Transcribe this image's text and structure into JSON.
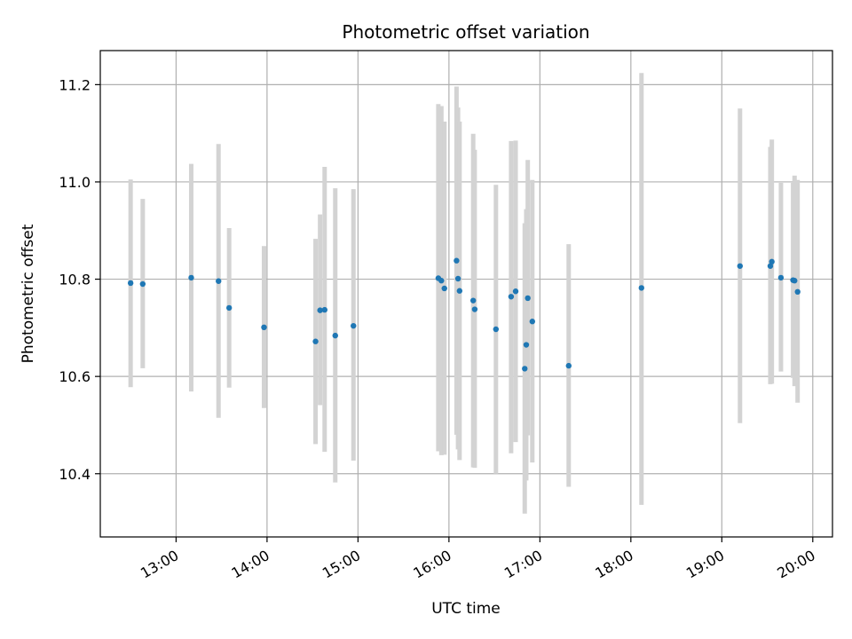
{
  "chart_data": {
    "type": "scatter",
    "title": "Photometric offset variation",
    "xlabel": "UTC time",
    "ylabel": "Photometric offset",
    "xlim": [
      "12:10",
      "20:13"
    ],
    "ylim": [
      10.27,
      11.27
    ],
    "grid": true,
    "legend": "none",
    "colors": {
      "points": "#1f77b4",
      "errorbars": "#d3d3d3",
      "grid": "#b0b0b0"
    },
    "x_ticks": [
      "13:00",
      "14:00",
      "15:00",
      "16:00",
      "17:00",
      "18:00",
      "19:00",
      "20:00"
    ],
    "y_ticks": [
      "10.4",
      "10.6",
      "10.8",
      "11.0",
      "11.2"
    ],
    "points": [
      {
        "x": "12:30",
        "y": 10.792,
        "err_low": 10.578,
        "err_high": 11.005
      },
      {
        "x": "12:38",
        "y": 10.79,
        "err_low": 10.617,
        "err_high": 10.965
      },
      {
        "x": "13:10",
        "y": 10.803,
        "err_low": 10.569,
        "err_high": 11.037
      },
      {
        "x": "13:28",
        "y": 10.796,
        "err_low": 10.515,
        "err_high": 11.078
      },
      {
        "x": "13:35",
        "y": 10.741,
        "err_low": 10.577,
        "err_high": 10.905
      },
      {
        "x": "13:58",
        "y": 10.701,
        "err_low": 10.535,
        "err_high": 10.868
      },
      {
        "x": "14:32",
        "y": 10.672,
        "err_low": 10.461,
        "err_high": 10.883
      },
      {
        "x": "14:35",
        "y": 10.736,
        "err_low": 10.541,
        "err_high": 10.933
      },
      {
        "x": "14:38",
        "y": 10.737,
        "err_low": 10.445,
        "err_high": 11.031
      },
      {
        "x": "14:45",
        "y": 10.684,
        "err_low": 10.382,
        "err_high": 10.987
      },
      {
        "x": "14:57",
        "y": 10.704,
        "err_low": 10.427,
        "err_high": 10.985
      },
      {
        "x": "15:53",
        "y": 10.802,
        "err_low": 10.446,
        "err_high": 11.16
      },
      {
        "x": "15:55",
        "y": 10.797,
        "err_low": 10.438,
        "err_high": 11.156
      },
      {
        "x": "15:57",
        "y": 10.781,
        "err_low": 10.439,
        "err_high": 11.124
      },
      {
        "x": "16:05",
        "y": 10.838,
        "err_low": 10.48,
        "err_high": 11.196
      },
      {
        "x": "16:06",
        "y": 10.801,
        "err_low": 10.45,
        "err_high": 11.153
      },
      {
        "x": "16:07",
        "y": 10.776,
        "err_low": 10.428,
        "err_high": 11.124
      },
      {
        "x": "16:16",
        "y": 10.756,
        "err_low": 10.413,
        "err_high": 11.099
      },
      {
        "x": "16:17",
        "y": 10.738,
        "err_low": 10.412,
        "err_high": 11.066
      },
      {
        "x": "16:31",
        "y": 10.697,
        "err_low": 10.4,
        "err_high": 10.994
      },
      {
        "x": "16:41",
        "y": 10.764,
        "err_low": 10.442,
        "err_high": 11.084
      },
      {
        "x": "16:44",
        "y": 10.775,
        "err_low": 10.465,
        "err_high": 11.085
      },
      {
        "x": "16:50",
        "y": 10.616,
        "err_low": 10.318,
        "err_high": 10.915
      },
      {
        "x": "16:51",
        "y": 10.665,
        "err_low": 10.386,
        "err_high": 10.944
      },
      {
        "x": "16:52",
        "y": 10.761,
        "err_low": 10.479,
        "err_high": 11.045
      },
      {
        "x": "16:55",
        "y": 10.713,
        "err_low": 10.423,
        "err_high": 11.004
      },
      {
        "x": "17:19",
        "y": 10.622,
        "err_low": 10.373,
        "err_high": 10.872
      },
      {
        "x": "18:07",
        "y": 10.782,
        "err_low": 10.336,
        "err_high": 11.224
      },
      {
        "x": "19:12",
        "y": 10.827,
        "err_low": 10.504,
        "err_high": 11.151
      },
      {
        "x": "19:32",
        "y": 10.827,
        "err_low": 10.584,
        "err_high": 11.072
      },
      {
        "x": "19:33",
        "y": 10.836,
        "err_low": 10.585,
        "err_high": 11.087
      },
      {
        "x": "19:39",
        "y": 10.803,
        "err_low": 10.61,
        "err_high": 10.998
      },
      {
        "x": "19:47",
        "y": 10.798,
        "err_low": 10.597,
        "err_high": 10.998
      },
      {
        "x": "19:48",
        "y": 10.797,
        "err_low": 10.58,
        "err_high": 11.013
      },
      {
        "x": "19:50",
        "y": 10.774,
        "err_low": 10.546,
        "err_high": 11.004
      }
    ]
  }
}
